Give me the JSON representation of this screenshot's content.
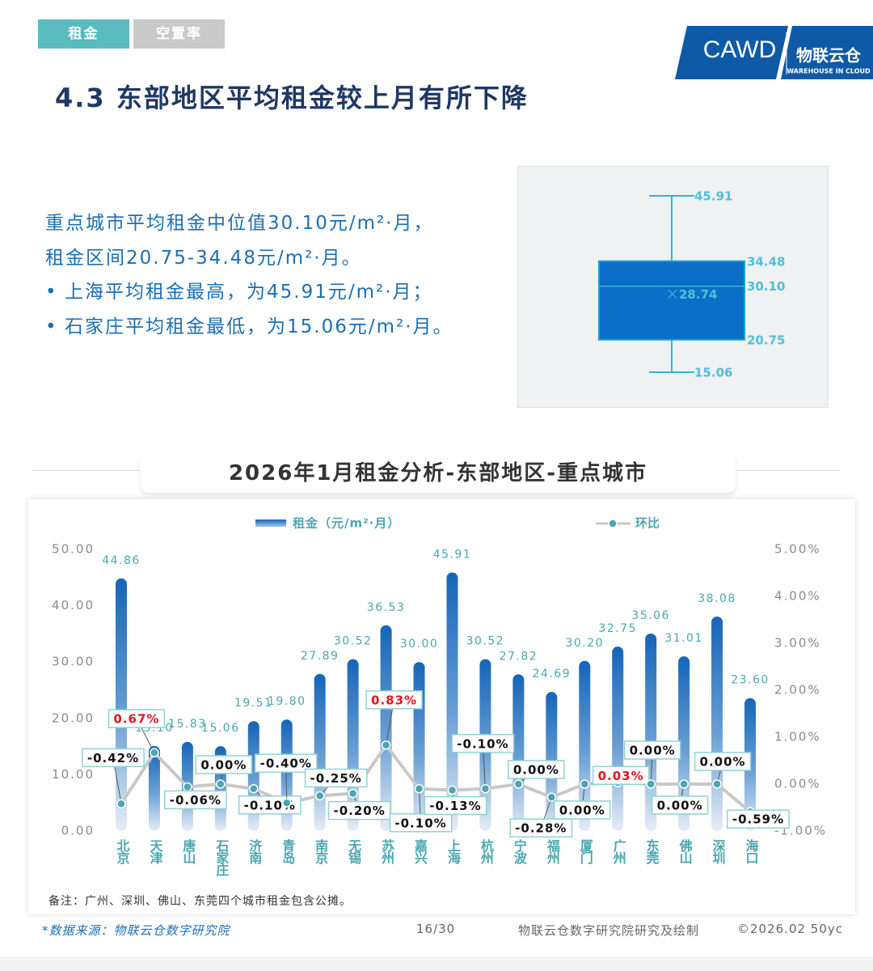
{
  "tabs": [
    "租金",
    "空置率"
  ],
  "logo": {
    "cawd": "CAWD",
    "brand": "物联云仓",
    "brand_en": "WAREHOUSE IN CLOUD"
  },
  "heading": "4.3 东部地区平均租金较上月有所下降",
  "summary": [
    "重点城市平均租金中位值30.10元/m²·月，",
    "租金区间20.75-34.48元/m²·月。"
  ],
  "bullets": [
    "上海平均租金最高，为45.91元/m²·月；",
    "石家庄平均租金最低，为15.06元/m²·月。"
  ],
  "chart_data": [
    {
      "type": "box",
      "values": [
        15.06,
        20.75,
        30.1,
        34.48,
        45.91
      ],
      "value_labels": [
        "15.06",
        "20.75",
        "30.10",
        "34.48",
        "45.91"
      ],
      "mean": 28.74,
      "color": "#0b6fc8",
      "whisker_color": "#36b3d1"
    },
    {
      "type": "bar",
      "title": "2026年1月租金分析-东部地区-重点城市",
      "categories": [
        "北京",
        "天津",
        "唐山",
        "石家庄",
        "济南",
        "青岛",
        "南京",
        "无锡",
        "苏州",
        "嘉兴",
        "上海",
        "杭州",
        "宁波",
        "福州",
        "厦门",
        "广州",
        "东莞",
        "佛山",
        "深圳",
        "海口"
      ],
      "series": [
        {
          "name": "租金（元/m²·月）",
          "type": "bar",
          "color": "#1565b8",
          "values": [
            44.86,
            15.1,
            15.83,
            15.06,
            19.51,
            19.8,
            27.89,
            30.52,
            36.53,
            30.0,
            45.91,
            30.52,
            27.82,
            24.69,
            30.2,
            32.75,
            35.06,
            31.01,
            38.08,
            23.6
          ],
          "value_labels": [
            "44.86",
            "15.10",
            "15.83",
            "15.06",
            "19.51",
            "19.80",
            "27.89",
            "30.52",
            "36.53",
            "30.00",
            "45.91",
            "30.52",
            "27.82",
            "24.69",
            "30.20",
            "32.75",
            "35.06",
            "31.01",
            "38.08",
            "23.60"
          ]
        },
        {
          "name": "环比",
          "type": "line",
          "axis": "y2",
          "color": "#c8c8c8",
          "marker_color": "#4aa7b0",
          "values": [
            -0.42,
            0.67,
            -0.06,
            0.0,
            -0.1,
            -0.4,
            -0.25,
            -0.2,
            0.83,
            -0.1,
            -0.13,
            -0.1,
            0.0,
            -0.28,
            0.0,
            0.03,
            0.0,
            0.0,
            0.0,
            -0.59
          ],
          "value_labels": [
            "-0.42%",
            "0.67%",
            "-0.06%",
            "0.00%",
            "-0.10%",
            "-0.40%",
            "-0.25%",
            "-0.20%",
            "0.83%",
            "-0.10%",
            "-0.13%",
            "-0.10%",
            "0.00%",
            "-0.28%",
            "0.00%",
            "0.03%",
            "0.00%",
            "0.00%",
            "0.00%",
            "-0.59%"
          ],
          "positive_label_color": "#e8141c"
        }
      ],
      "ylim": [
        0,
        50
      ],
      "yticks": [
        {
          "value": 0,
          "label": "0.00"
        },
        {
          "value": 10,
          "label": "10.00"
        },
        {
          "value": 20,
          "label": "20.00"
        },
        {
          "value": 30,
          "label": "30.00"
        },
        {
          "value": 40,
          "label": "40.00"
        },
        {
          "value": 50,
          "label": "50.00"
        }
      ],
      "y2lim": [
        -1,
        5
      ],
      "y2ticks": [
        {
          "value": -1,
          "label": "-1.00%"
        },
        {
          "value": 0,
          "label": "0.00%"
        },
        {
          "value": 1,
          "label": "1.00%"
        },
        {
          "value": 2,
          "label": "2.00%"
        },
        {
          "value": 3,
          "label": "3.00%"
        },
        {
          "value": 4,
          "label": "4.00%"
        },
        {
          "value": 5,
          "label": "5.00%"
        }
      ]
    }
  ],
  "note": "备注：广州、深圳、佛山、东莞四个城市租金包含公摊。",
  "footer": {
    "source": "*数据来源：物联云仓数字研究院",
    "page": "16/30",
    "credit": "物联云仓数字研究院研究及绘制",
    "copyright": "©2026.02 50yc"
  }
}
